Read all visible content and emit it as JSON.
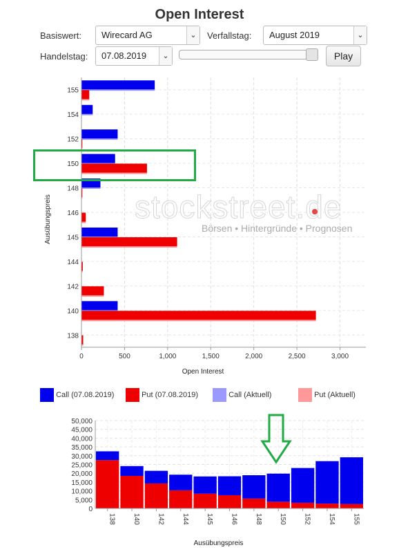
{
  "page": {
    "title": "Open Interest"
  },
  "controls": {
    "basiswert_label": "Basiswert:",
    "basiswert_value": "Wirecard AG",
    "verfallstag_label": "Verfallstag:",
    "verfallstag_value": "August 2019",
    "handelstag_label": "Handelstag:",
    "handelstag_value": "07.08.2019",
    "play_label": "Play",
    "slider_position": 1.0
  },
  "watermark": {
    "logo": "stockstreet.de",
    "tagline": "Börsen • Hintergründe • Prognosen"
  },
  "colors": {
    "call": "#0000ee",
    "put": "#ee0000",
    "call_aktuell": "#9999ff",
    "put_aktuell": "#ff9999",
    "highlight_box": "#22aa44",
    "arrow": "#22aa44"
  },
  "chart_data": [
    {
      "type": "bar",
      "orientation": "horizontal",
      "categories": [
        "155",
        "154",
        "152",
        "150",
        "148",
        "146",
        "145",
        "144",
        "142",
        "140",
        "138"
      ],
      "series": [
        {
          "name": "Call (07.08.2019)",
          "values": [
            850,
            130,
            420,
            390,
            220,
            0,
            420,
            0,
            0,
            420,
            0
          ]
        },
        {
          "name": "Put (07.08.2019)",
          "values": [
            90,
            0,
            10,
            760,
            10,
            50,
            1110,
            15,
            260,
            2720,
            20
          ]
        }
      ],
      "xlabel": "Open Interest",
      "ylabel": "Ausübungspreis",
      "xlim": [
        0,
        3300
      ],
      "xticks": [
        "0",
        "500",
        "1,000",
        "1,500",
        "2,000",
        "2,500",
        "3,000"
      ],
      "xtick_values": [
        0,
        500,
        1000,
        1500,
        2000,
        2500,
        3000
      ],
      "grid": true,
      "highlighted_category": "150"
    },
    {
      "type": "bar",
      "stacked": true,
      "categories": [
        "138",
        "140",
        "142",
        "144",
        "145",
        "146",
        "148",
        "150",
        "152",
        "154",
        "155"
      ],
      "series": [
        {
          "name": "Put (07.08.2019)",
          "values": [
            27500,
            18500,
            14200,
            10300,
            8400,
            7500,
            5600,
            3800,
            3200,
            2700,
            2500
          ]
        },
        {
          "name": "Call (07.08.2019)",
          "values": [
            5000,
            5600,
            7200,
            8900,
            9800,
            10800,
            13300,
            16000,
            19800,
            24200,
            26600
          ]
        }
      ],
      "xlabel": "Ausübungspreis",
      "ylabel": "",
      "ylim": [
        0,
        50000
      ],
      "yticks": [
        "0",
        "5,000",
        "10,000",
        "15,000",
        "20,000",
        "25,000",
        "30,000",
        "35,000",
        "40,000",
        "45,000",
        "50,000"
      ],
      "ytick_values": [
        0,
        5000,
        10000,
        15000,
        20000,
        25000,
        30000,
        35000,
        40000,
        45000,
        50000
      ],
      "grid": true,
      "arrow_category": "150"
    }
  ],
  "legend": [
    {
      "label": "Call (07.08.2019)",
      "color": "#0000ee"
    },
    {
      "label": "Put (07.08.2019)",
      "color": "#ee0000"
    },
    {
      "label": "Call (Aktuell)",
      "color": "#9999ff"
    },
    {
      "label": "Put (Aktuell)",
      "color": "#ff9999"
    }
  ]
}
